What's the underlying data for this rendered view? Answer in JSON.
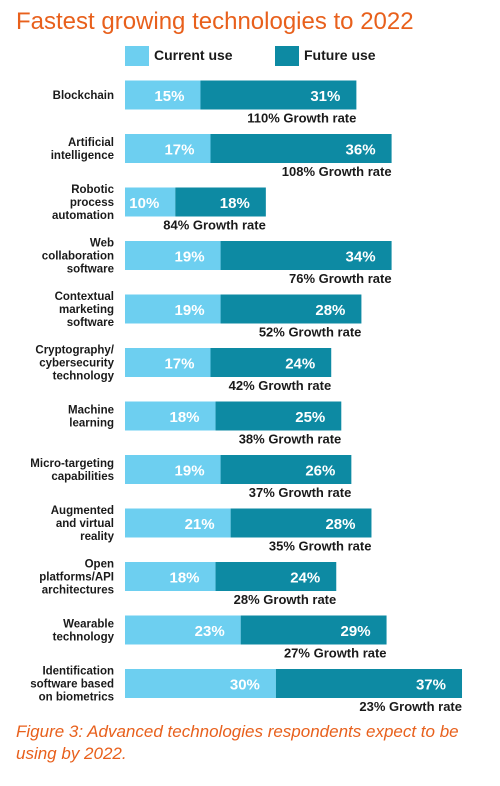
{
  "title": "Fastest growing technologies to 2022",
  "caption": "Figure 3: Advanced technologies respondents expect to be using by 2022.",
  "colors": {
    "current": "#6dcff0",
    "future": "#0d8aa3",
    "title": "#e8601c"
  },
  "legend": {
    "current": "Current use",
    "future": "Future use"
  },
  "chart_data": {
    "type": "bar",
    "stacked": true,
    "orientation": "horizontal",
    "categories": [
      [
        "Blockchain"
      ],
      [
        "Artificial",
        "intelligence"
      ],
      [
        "Robotic",
        "process",
        "automation"
      ],
      [
        "Web",
        "collaboration",
        "software"
      ],
      [
        "Contextual",
        "marketing",
        "software"
      ],
      [
        "Cryptography/",
        "cybersecurity",
        "technology"
      ],
      [
        "Machine",
        "learning"
      ],
      [
        "Micro-targeting",
        "capabilities"
      ],
      [
        "Augmented",
        "and virtual",
        "reality"
      ],
      [
        "Open",
        "platforms/API",
        "architectures"
      ],
      [
        "Wearable",
        "technology"
      ],
      [
        "Identification",
        "software based",
        "on biometrics"
      ]
    ],
    "series": [
      {
        "name": "Current use",
        "values": [
          15,
          17,
          10,
          19,
          19,
          17,
          18,
          19,
          21,
          18,
          23,
          30
        ]
      },
      {
        "name": "Future use",
        "values": [
          31,
          36,
          18,
          34,
          28,
          24,
          25,
          26,
          28,
          24,
          29,
          37
        ]
      }
    ],
    "growth_labels": [
      "110% Growth rate",
      "108% Growth rate",
      "84% Growth rate",
      "76% Growth rate",
      "52% Growth rate",
      "42% Growth rate",
      "38% Growth rate",
      "37% Growth rate",
      "35% Growth rate",
      "28% Growth rate",
      "27% Growth rate",
      "23% Growth rate"
    ],
    "value_suffix": "%",
    "xlabel": "",
    "ylabel": "",
    "grid": false,
    "legend_position": "top"
  }
}
